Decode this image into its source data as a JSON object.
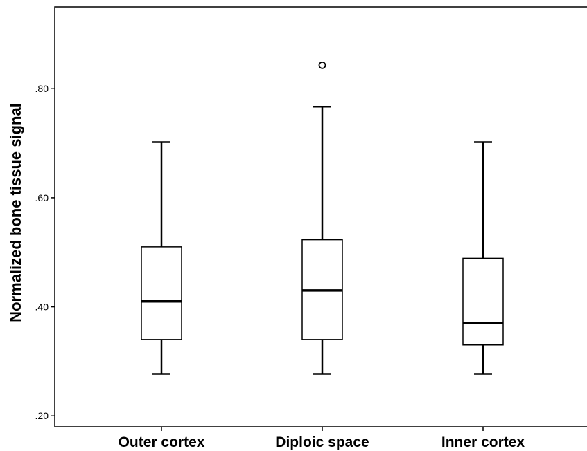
{
  "chart_data": {
    "type": "box",
    "title": "",
    "xlabel": "",
    "ylabel": "Normalized bone tissue signal",
    "ylim": [
      0.18,
      0.95
    ],
    "yticks": [
      {
        "value": 0.2,
        "label": ".20"
      },
      {
        "value": 0.4,
        "label": ".40"
      },
      {
        "value": 0.6,
        "label": ".60"
      },
      {
        "value": 0.8,
        "label": ".80"
      }
    ],
    "grid": false,
    "categories": [
      "Outer cortex",
      "Diploic space",
      "Inner cortex"
    ],
    "boxes": [
      {
        "category": "Outer cortex",
        "min": 0.277,
        "q1": 0.34,
        "median": 0.41,
        "q3": 0.51,
        "max": 0.702,
        "outliers": []
      },
      {
        "category": "Diploic space",
        "min": 0.277,
        "q1": 0.34,
        "median": 0.43,
        "q3": 0.523,
        "max": 0.767,
        "outliers": [
          0.843
        ]
      },
      {
        "category": "Inner cortex",
        "min": 0.277,
        "q1": 0.33,
        "median": 0.37,
        "q3": 0.489,
        "max": 0.702,
        "outliers": []
      }
    ],
    "colors": {
      "box_fill": "#ffffff",
      "stroke": "#000000"
    }
  }
}
